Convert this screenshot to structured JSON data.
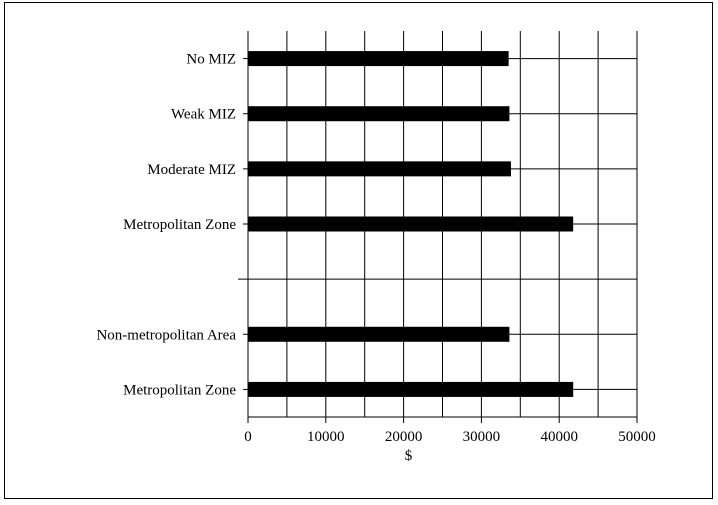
{
  "chart_data": {
    "type": "bar",
    "orientation": "horizontal",
    "title": "",
    "xlabel": "$",
    "ylabel": "",
    "xlim": [
      0,
      50000
    ],
    "xticks": [
      0,
      10000,
      20000,
      30000,
      40000,
      50000
    ],
    "xtick_labels": [
      "0",
      "10000",
      "20000",
      "30000",
      "40000",
      "50000"
    ],
    "grid": true,
    "bar_color": "#000000",
    "categories": [
      "No MIZ",
      "Weak MIZ",
      "Moderate MIZ",
      "Metropolitan Zone",
      "",
      "Non-metropolitan Area",
      "Metropolitan Zone"
    ],
    "values": [
      33500,
      33600,
      33800,
      41800,
      null,
      33600,
      41800
    ]
  }
}
